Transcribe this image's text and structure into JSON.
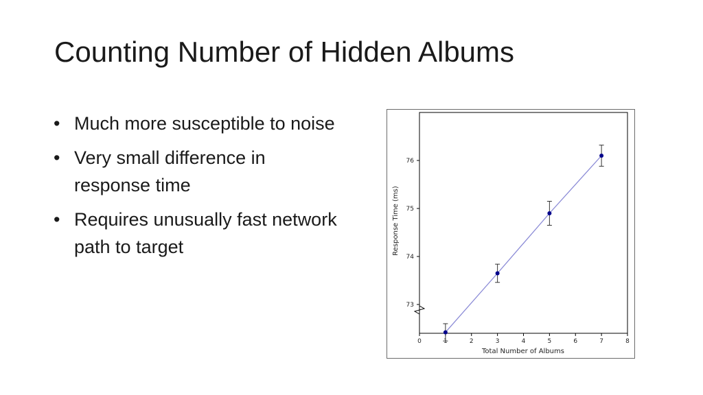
{
  "slide": {
    "title": "Counting Number of Hidden Albums",
    "bullets": [
      "Much more susceptible to noise",
      "Very small difference in response time",
      "Requires unusually fast network path to target"
    ]
  },
  "chart_data": {
    "type": "line",
    "title": "",
    "xlabel": "Total Number of Albums",
    "ylabel": "Response Time (ms)",
    "xlim": [
      0,
      8
    ],
    "ylim": [
      72.4,
      77.0
    ],
    "y_axis_break": true,
    "x_ticks": [
      0,
      1,
      2,
      3,
      4,
      5,
      6,
      7,
      8
    ],
    "y_ticks": [
      73,
      74,
      75,
      76
    ],
    "grid": false,
    "legend": "none",
    "series": [
      {
        "x": [
          1,
          3,
          5,
          7
        ],
        "y": [
          72.42,
          73.65,
          74.9,
          76.1
        ],
        "error": [
          0.18,
          0.19,
          0.25,
          0.22
        ],
        "color": "#00008b",
        "line_color": "#8a8ad6"
      }
    ]
  }
}
